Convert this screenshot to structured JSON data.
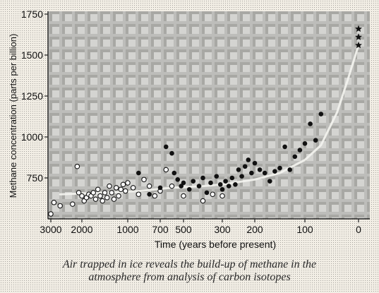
{
  "caption": {
    "line1": "Air trapped in ice reveals the build-up of methane in the",
    "line2": "atmosphere from analysis of carbon isotopes"
  },
  "chart_data": {
    "type": "scatter",
    "title": "",
    "xlabel": "Time (years before present)",
    "ylabel": "Methane concentration (parts per billion)",
    "x_scale": "log-like, reversed (years before present, 0 at right)",
    "x_tick_labels": [
      "3000",
      "2000",
      "1000",
      "700",
      "500",
      "300",
      "200",
      "100",
      "0"
    ],
    "x_tick_values": [
      3000,
      2000,
      1000,
      700,
      500,
      300,
      200,
      100,
      0
    ],
    "y_tick_labels": [
      "750",
      "1000",
      "1250",
      "1500",
      "1750"
    ],
    "y_tick_values": [
      750,
      1000,
      1250,
      1500,
      1750
    ],
    "ylim": [
      500,
      1750
    ],
    "grid": false,
    "legend": "none",
    "colors": {
      "filled": "#111111",
      "open": "#ffffff",
      "trend": "#f4f4f0",
      "plot_bg": "#c9c9c6"
    },
    "series": [
      {
        "marker": "open-circle",
        "points": [
          [
            3000,
            530
          ],
          [
            2900,
            600
          ],
          [
            2700,
            580
          ],
          [
            2300,
            590
          ],
          [
            2150,
            820
          ],
          [
            2100,
            660
          ],
          [
            2000,
            640
          ],
          [
            1950,
            610
          ],
          [
            1900,
            630
          ],
          [
            1850,
            650
          ],
          [
            1800,
            640
          ],
          [
            1750,
            660
          ],
          [
            1700,
            620
          ],
          [
            1650,
            680
          ],
          [
            1600,
            640
          ],
          [
            1550,
            610
          ],
          [
            1500,
            660
          ],
          [
            1450,
            630
          ],
          [
            1400,
            700
          ],
          [
            1350,
            660
          ],
          [
            1300,
            620
          ],
          [
            1250,
            690
          ],
          [
            1200,
            640
          ],
          [
            1150,
            680
          ],
          [
            1100,
            710
          ],
          [
            1050,
            670
          ],
          [
            1000,
            720
          ],
          [
            950,
            690
          ],
          [
            900,
            650
          ],
          [
            850,
            740
          ],
          [
            800,
            700
          ],
          [
            750,
            640
          ],
          [
            700,
            670
          ],
          [
            650,
            800
          ],
          [
            600,
            700
          ],
          [
            500,
            640
          ],
          [
            400,
            610
          ],
          [
            350,
            650
          ],
          [
            300,
            640
          ]
        ]
      },
      {
        "marker": "filled-circle",
        "points": [
          [
            900,
            780
          ],
          [
            800,
            650
          ],
          [
            700,
            690
          ],
          [
            650,
            940
          ],
          [
            600,
            900
          ],
          [
            580,
            780
          ],
          [
            550,
            740
          ],
          [
            520,
            700
          ],
          [
            500,
            720
          ],
          [
            470,
            680
          ],
          [
            450,
            730
          ],
          [
            420,
            700
          ],
          [
            400,
            750
          ],
          [
            380,
            660
          ],
          [
            360,
            720
          ],
          [
            330,
            760
          ],
          [
            310,
            710
          ],
          [
            300,
            680
          ],
          [
            290,
            730
          ],
          [
            280,
            700
          ],
          [
            270,
            750
          ],
          [
            260,
            710
          ],
          [
            250,
            800
          ],
          [
            240,
            760
          ],
          [
            230,
            820
          ],
          [
            220,
            860
          ],
          [
            210,
            780
          ],
          [
            200,
            840
          ],
          [
            190,
            800
          ],
          [
            180,
            780
          ],
          [
            170,
            730
          ],
          [
            160,
            790
          ],
          [
            150,
            810
          ],
          [
            140,
            940
          ],
          [
            130,
            800
          ],
          [
            120,
            880
          ],
          [
            110,
            920
          ],
          [
            100,
            960
          ],
          [
            90,
            1080
          ],
          [
            80,
            980
          ],
          [
            70,
            1140
          ]
        ]
      },
      {
        "marker": "star",
        "points": [
          [
            0,
            1660
          ],
          [
            0,
            1610
          ],
          [
            0,
            1560
          ]
        ]
      }
    ],
    "trend_line": [
      [
        2700,
        650
      ],
      [
        1500,
        660
      ],
      [
        900,
        670
      ],
      [
        600,
        690
      ],
      [
        400,
        700
      ],
      [
        300,
        710
      ],
      [
        200,
        740
      ],
      [
        150,
        780
      ],
      [
        100,
        860
      ],
      [
        70,
        950
      ],
      [
        40,
        1150
      ],
      [
        20,
        1350
      ],
      [
        0,
        1560
      ]
    ]
  }
}
